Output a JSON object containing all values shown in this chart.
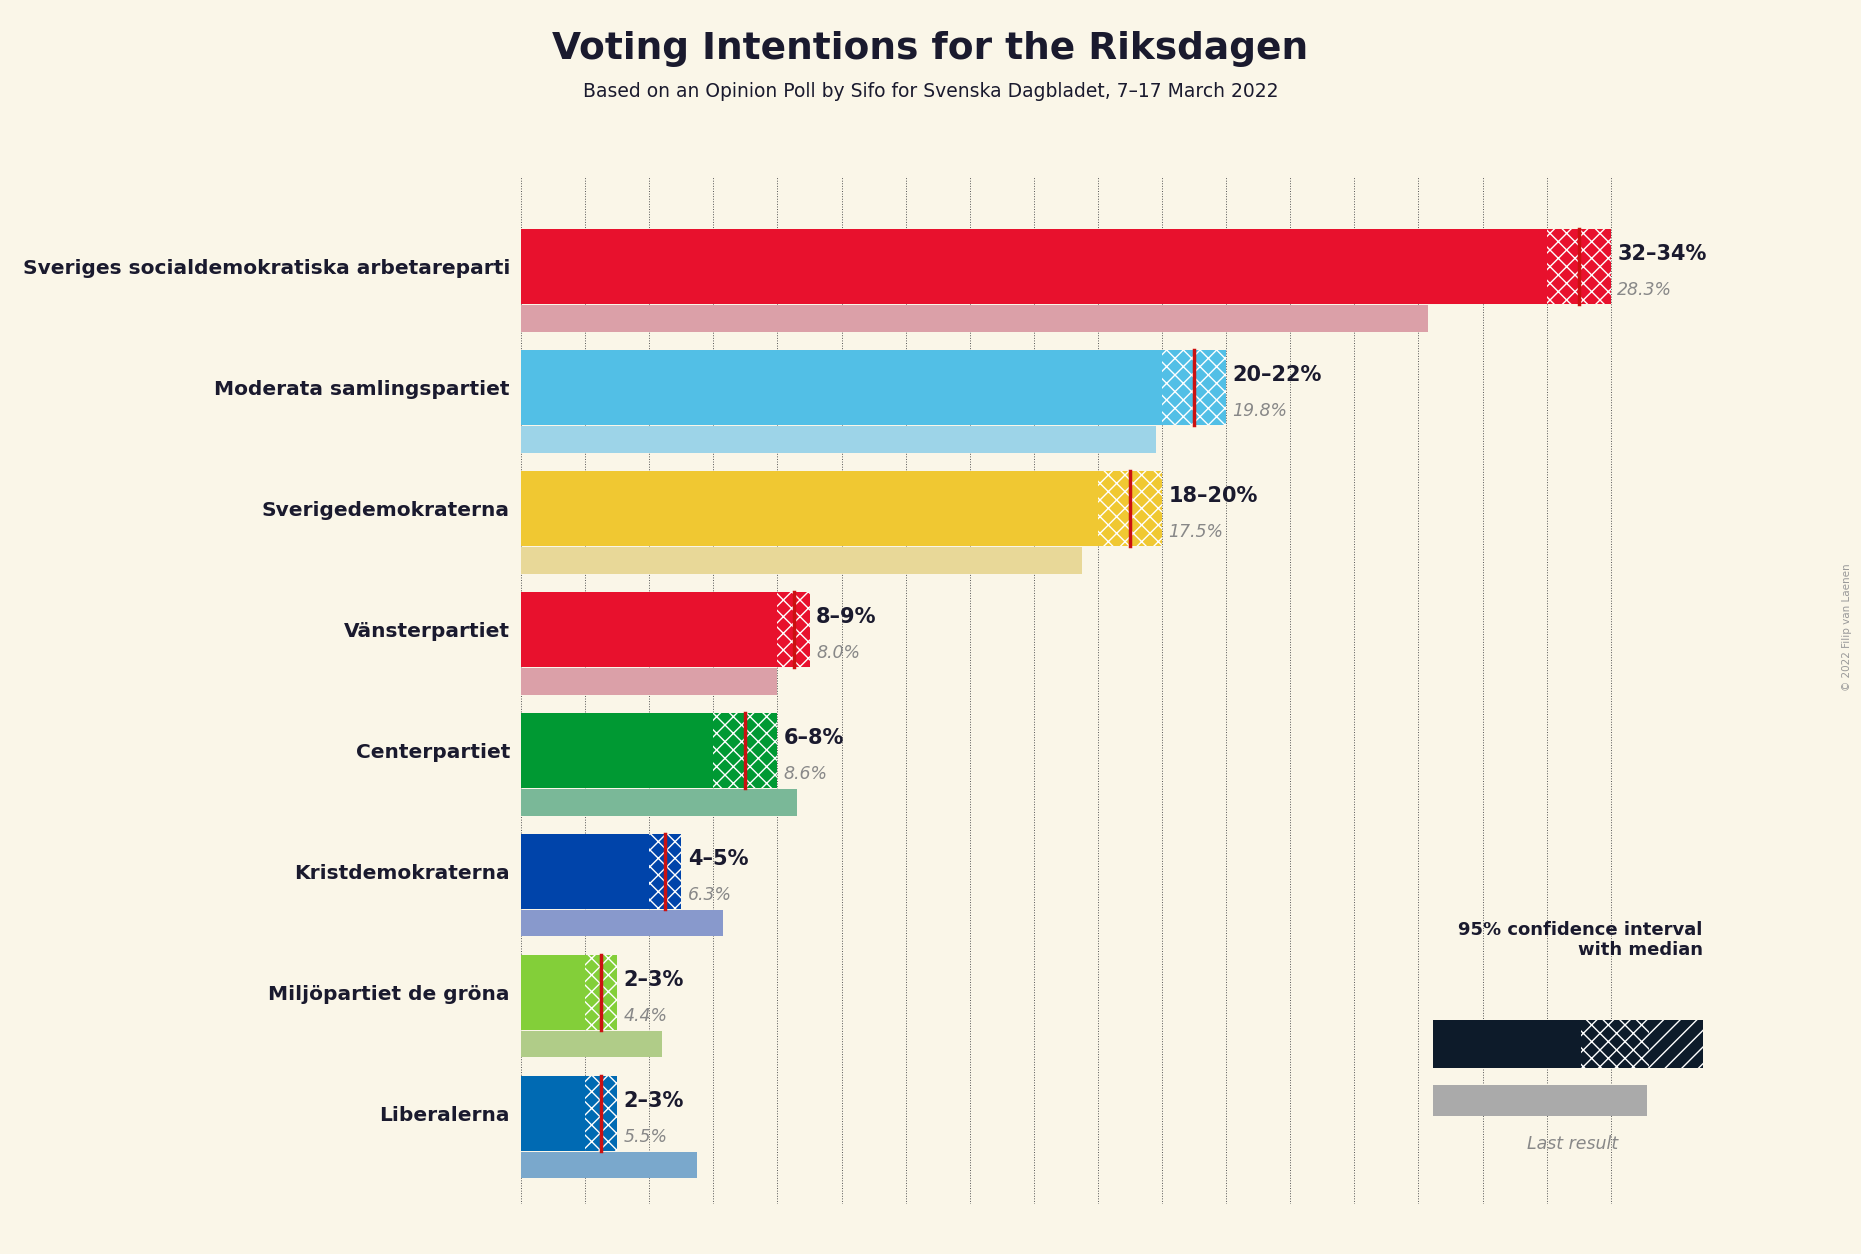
{
  "title": "Voting Intentions for the Riksdagen",
  "subtitle": "Based on an Opinion Poll by Sifo for Svenska Dagbladet, 7–17 March 2022",
  "copyright": "© 2022 Filip van Laenen",
  "background_color": "#faf6e8",
  "parties": [
    {
      "name": "Sveriges socialdemokratiska arbetareparti",
      "ci_low": 32,
      "ci_high": 34,
      "median": 33,
      "last_result": 28.3,
      "color": "#E8112d",
      "last_color": "#dba0a8"
    },
    {
      "name": "Moderata samlingspartiet",
      "ci_low": 20,
      "ci_high": 22,
      "median": 21,
      "last_result": 19.8,
      "color": "#52bfe6",
      "last_color": "#9dd4e8"
    },
    {
      "name": "Sverigedemokraterna",
      "ci_low": 18,
      "ci_high": 20,
      "median": 19,
      "last_result": 17.5,
      "color": "#f0c832",
      "last_color": "#e8d898"
    },
    {
      "name": "Vänsterpartiet",
      "ci_low": 8,
      "ci_high": 9,
      "median": 8.5,
      "last_result": 8.0,
      "color": "#E8112d",
      "last_color": "#dba0a8"
    },
    {
      "name": "Centerpartiet",
      "ci_low": 6,
      "ci_high": 8,
      "median": 7,
      "last_result": 8.6,
      "color": "#009933",
      "last_color": "#7ab898"
    },
    {
      "name": "Kristdemokraterna",
      "ci_low": 4,
      "ci_high": 5,
      "median": 4.5,
      "last_result": 6.3,
      "color": "#0044aa",
      "last_color": "#8899cc"
    },
    {
      "name": "Miljöpartiet de gröna",
      "ci_low": 2,
      "ci_high": 3,
      "median": 2.5,
      "last_result": 4.4,
      "color": "#83cf39",
      "last_color": "#b0cc88"
    },
    {
      "name": "Liberalerna",
      "ci_low": 2,
      "ci_high": 3,
      "median": 2.5,
      "last_result": 5.5,
      "color": "#006AB3",
      "last_color": "#7aa8cc"
    }
  ],
  "xlim": [
    0,
    36
  ],
  "bar_height": 0.62,
  "last_bar_height": 0.22,
  "label_range": [
    "32–34%",
    "20–22%",
    "18–20%",
    "8–9%",
    "6–8%",
    "4–5%",
    "2–3%",
    "2–3%"
  ],
  "label_last": [
    "28.3%",
    "19.8%",
    "17.5%",
    "8.0%",
    "8.6%",
    "6.3%",
    "4.4%",
    "5.5%"
  ],
  "legend_label": "95% confidence interval\nwith median",
  "legend_last": "Last result"
}
